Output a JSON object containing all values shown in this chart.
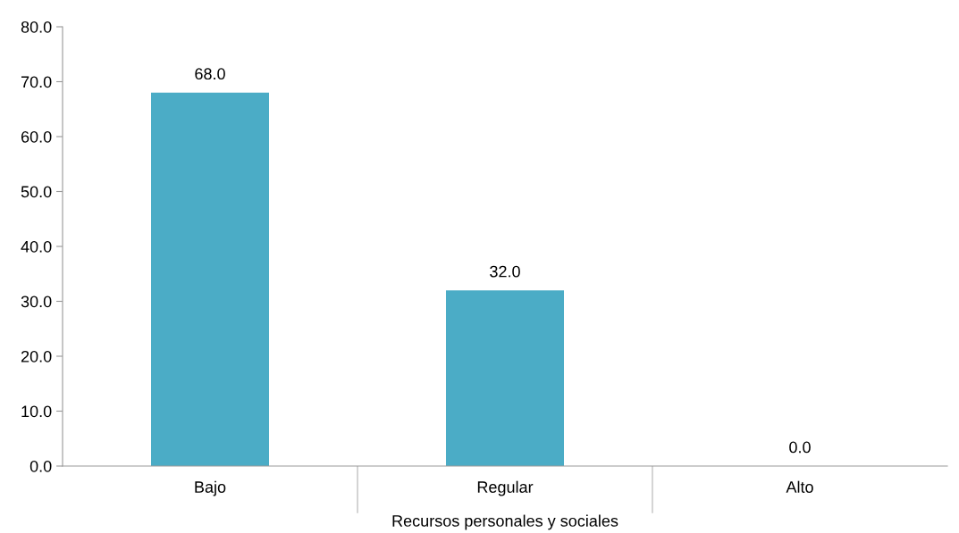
{
  "chart_data": {
    "type": "bar",
    "xlabel": "Recursos personales y sociales",
    "categories": [
      "Bajo",
      "Regular",
      "Alto"
    ],
    "values": [
      68.0,
      32.0,
      0.0
    ],
    "color": "#4bacc6",
    "value_labels": [
      "68.0",
      "32.0",
      "0.0"
    ],
    "ylim": [
      0,
      80
    ],
    "yticks": [
      {
        "value": 0,
        "label": "0.0"
      },
      {
        "value": 10,
        "label": "10.0"
      },
      {
        "value": 20,
        "label": "20.0"
      },
      {
        "value": 30,
        "label": "30.0"
      },
      {
        "value": 40,
        "label": "40.0"
      },
      {
        "value": 50,
        "label": "50.0"
      },
      {
        "value": 60,
        "label": "60.0"
      },
      {
        "value": 70,
        "label": "70.0"
      },
      {
        "value": 80,
        "label": "80.0"
      }
    ],
    "grid": false,
    "legend": false
  }
}
